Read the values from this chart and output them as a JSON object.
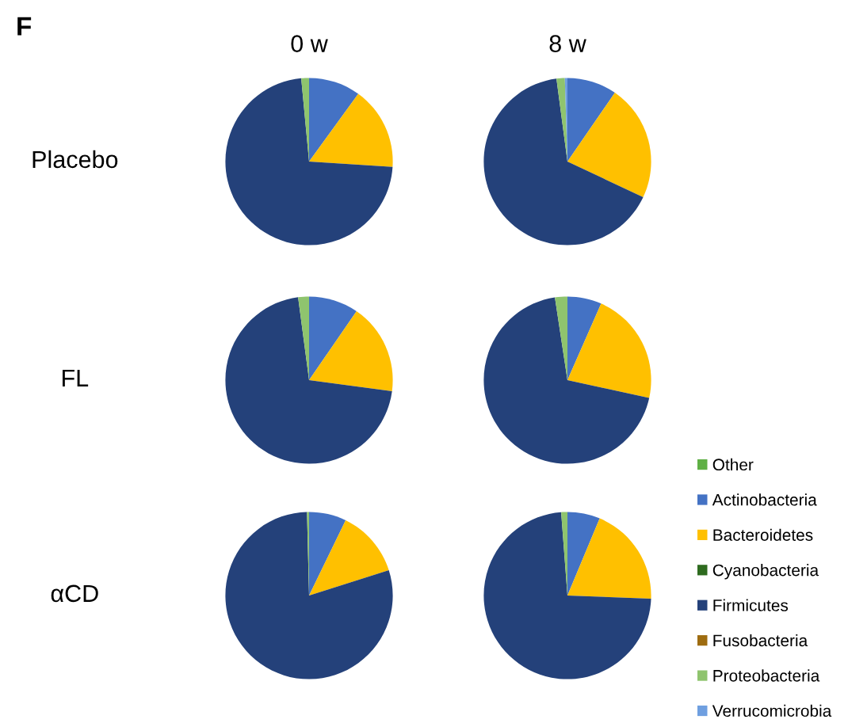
{
  "chart_data": [
    {
      "type": "pie",
      "title": "0 w",
      "ylabel": "Placebo",
      "annotations": [
        "F"
      ],
      "legend": "right",
      "categories": [
        "Other",
        "Actinobacteria",
        "Bacteroidetes",
        "Cyanobacteria",
        "Firmicutes",
        "Fusobacteria",
        "Proteobacteria",
        "Verrucomicrobia"
      ],
      "values": [
        0,
        10,
        16,
        0,
        72.5,
        0,
        1.5,
        0
      ],
      "colors": [
        "#5fb045",
        "#4472c4",
        "#ffc000",
        "#2e6b1f",
        "#24417a",
        "#9e6c10",
        "#8fc46e",
        "#6f9fe0"
      ]
    },
    {
      "type": "pie",
      "title": "8 w",
      "categories": [
        null,
        null,
        null,
        null,
        null,
        null,
        null,
        null
      ],
      "values": [
        0,
        9.6,
        22.4,
        0,
        65.9,
        0,
        1.6,
        0.5
      ],
      "colors": [
        "#5fb045",
        "#4472c4",
        "#ffc000",
        "#2e6b1f",
        "#24417a",
        "#9e6c10",
        "#8fc46e",
        "#6f9fe0"
      ]
    },
    {
      "type": "pie",
      "ylabel": "FL",
      "categories": [
        null,
        null,
        null,
        null,
        null,
        null,
        null,
        null
      ],
      "values": [
        0,
        9.6,
        17.5,
        0,
        70.8,
        0,
        2.1,
        0
      ],
      "colors": [
        "#5fb045",
        "#4472c4",
        "#ffc000",
        "#2e6b1f",
        "#24417a",
        "#9e6c10",
        "#8fc46e",
        "#6f9fe0"
      ]
    },
    {
      "type": "pie",
      "categories": [
        null,
        null,
        null,
        null,
        null,
        null,
        null,
        null
      ],
      "values": [
        0,
        6.6,
        21.8,
        0,
        69.2,
        0,
        2.4,
        0
      ],
      "colors": [
        "#5fb045",
        "#4472c4",
        "#ffc000",
        "#2e6b1f",
        "#24417a",
        "#9e6c10",
        "#8fc46e",
        "#6f9fe0"
      ]
    },
    {
      "type": "pie",
      "ylabel": "αCD",
      "categories": [
        null,
        null,
        null,
        null,
        null,
        null,
        null,
        null
      ],
      "values": [
        0,
        7.2,
        12.9,
        0,
        79.5,
        0,
        0.4,
        0
      ],
      "colors": [
        "#5fb045",
        "#4472c4",
        "#ffc000",
        "#2e6b1f",
        "#24417a",
        "#9e6c10",
        "#8fc46e",
        "#6f9fe0"
      ]
    },
    {
      "type": "pie",
      "categories": [
        null,
        null,
        null,
        null,
        null,
        null,
        null,
        null
      ],
      "values": [
        0,
        6.3,
        19.3,
        0,
        73.2,
        0,
        1.2,
        0
      ],
      "colors": [
        "#5fb045",
        "#4472c4",
        "#ffc000",
        "#2e6b1f",
        "#24417a",
        "#9e6c10",
        "#8fc46e",
        "#6f9fe0"
      ]
    }
  ]
}
